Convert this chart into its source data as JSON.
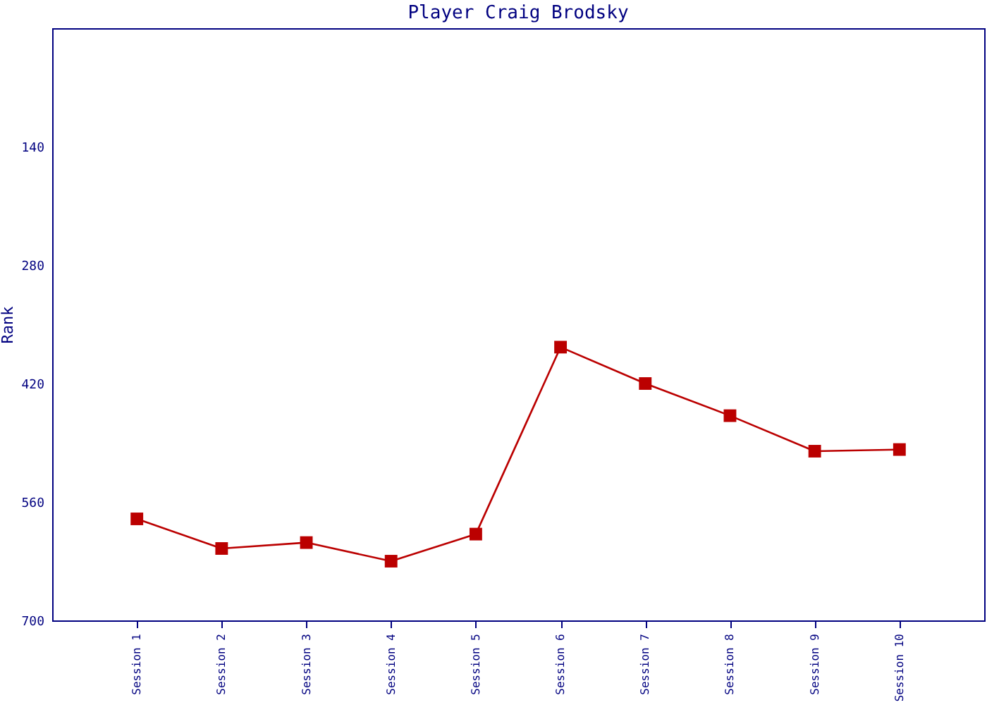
{
  "chart_data": {
    "type": "line",
    "title": "Player Craig Brodsky",
    "ylabel": "Rank",
    "categories": [
      "Session 1",
      "Session 2",
      "Session 3",
      "Session 4",
      "Session 5",
      "Session 6",
      "Session 7",
      "Session 8",
      "Session 9",
      "Session 10"
    ],
    "series": [
      {
        "color": "#bb0000",
        "values": [
          580,
          615,
          608,
          630,
          598,
          377,
          420,
          458,
          500,
          498
        ]
      }
    ],
    "ylim": [
      700,
      0
    ],
    "yticks": [
      140,
      280,
      420,
      560,
      700
    ],
    "grid": false,
    "legend": false,
    "marker": "square",
    "line_style": "solid"
  }
}
